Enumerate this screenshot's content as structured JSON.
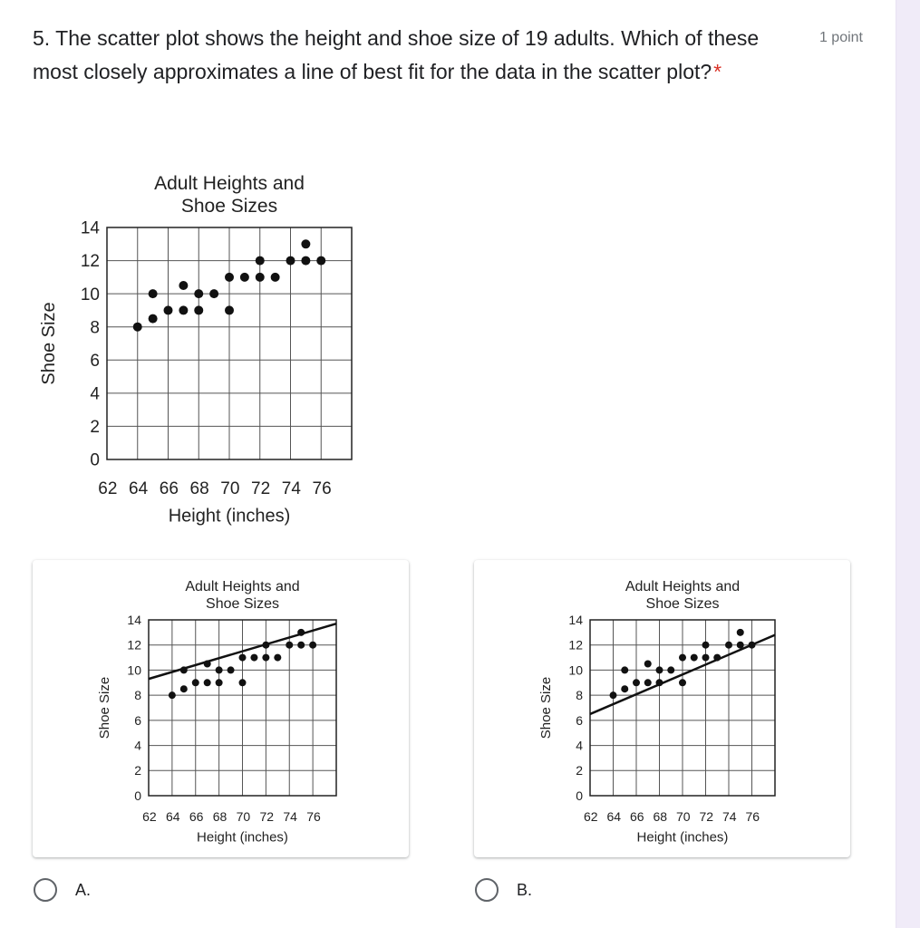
{
  "question": {
    "title": "5. The scatter plot shows the height and shoe size of 19 adults. Which of these most closely approximates a line of best fit for the data in the scatter plot?",
    "required_mark": "*",
    "points": "1 point"
  },
  "options": [
    {
      "label": "A."
    },
    {
      "label": "B."
    }
  ],
  "chart_data": [
    {
      "type": "scatter",
      "title": "Adult Heights and Shoe Sizes",
      "xlabel": "Height (inches)",
      "ylabel": "Shoe Size",
      "xlim": [
        62,
        78
      ],
      "ylim": [
        0,
        14
      ],
      "x_tick_labels": [
        "62",
        "64",
        "66",
        "68",
        "70",
        "72",
        "74",
        "76"
      ],
      "y_tick_labels": [
        "0",
        "2",
        "4",
        "6",
        "8",
        "10",
        "12",
        "14"
      ],
      "grid": true,
      "points": [
        {
          "x": 64,
          "y": 8
        },
        {
          "x": 65,
          "y": 8.5
        },
        {
          "x": 65,
          "y": 10
        },
        {
          "x": 66,
          "y": 9
        },
        {
          "x": 67,
          "y": 9
        },
        {
          "x": 67,
          "y": 10.5
        },
        {
          "x": 68,
          "y": 9
        },
        {
          "x": 68,
          "y": 10
        },
        {
          "x": 69,
          "y": 10
        },
        {
          "x": 70,
          "y": 9
        },
        {
          "x": 70,
          "y": 11
        },
        {
          "x": 71,
          "y": 11
        },
        {
          "x": 72,
          "y": 11
        },
        {
          "x": 72,
          "y": 12
        },
        {
          "x": 73,
          "y": 11
        },
        {
          "x": 74,
          "y": 12
        },
        {
          "x": 75,
          "y": 12
        },
        {
          "x": 75,
          "y": 13
        },
        {
          "x": 76,
          "y": 12
        }
      ]
    },
    {
      "type": "scatter",
      "title": "Adult Heights and Shoe Sizes",
      "xlabel": "Height (inches)",
      "ylabel": "Shoe Size",
      "xlim": [
        62,
        78
      ],
      "ylim": [
        0,
        14
      ],
      "x_tick_labels": [
        "62",
        "64",
        "66",
        "68",
        "70",
        "72",
        "74",
        "76"
      ],
      "y_tick_labels": [
        "0",
        "2",
        "4",
        "6",
        "8",
        "10",
        "12",
        "14"
      ],
      "grid": true,
      "points": "same as question plot",
      "fit_line": {
        "x1": 62,
        "y1": 9.3,
        "x2": 78,
        "y2": 13.7
      }
    },
    {
      "type": "scatter",
      "title": "Adult Heights and Shoe Sizes",
      "xlabel": "Height (inches)",
      "ylabel": "Shoe Size",
      "xlim": [
        62,
        78
      ],
      "ylim": [
        0,
        14
      ],
      "x_tick_labels": [
        "62",
        "64",
        "66",
        "68",
        "70",
        "72",
        "74",
        "76"
      ],
      "y_tick_labels": [
        "0",
        "2",
        "4",
        "6",
        "8",
        "10",
        "12",
        "14"
      ],
      "grid": true,
      "points": "same as question plot",
      "fit_line": {
        "x1": 62,
        "y1": 6.5,
        "x2": 78,
        "y2": 12.8
      }
    }
  ]
}
